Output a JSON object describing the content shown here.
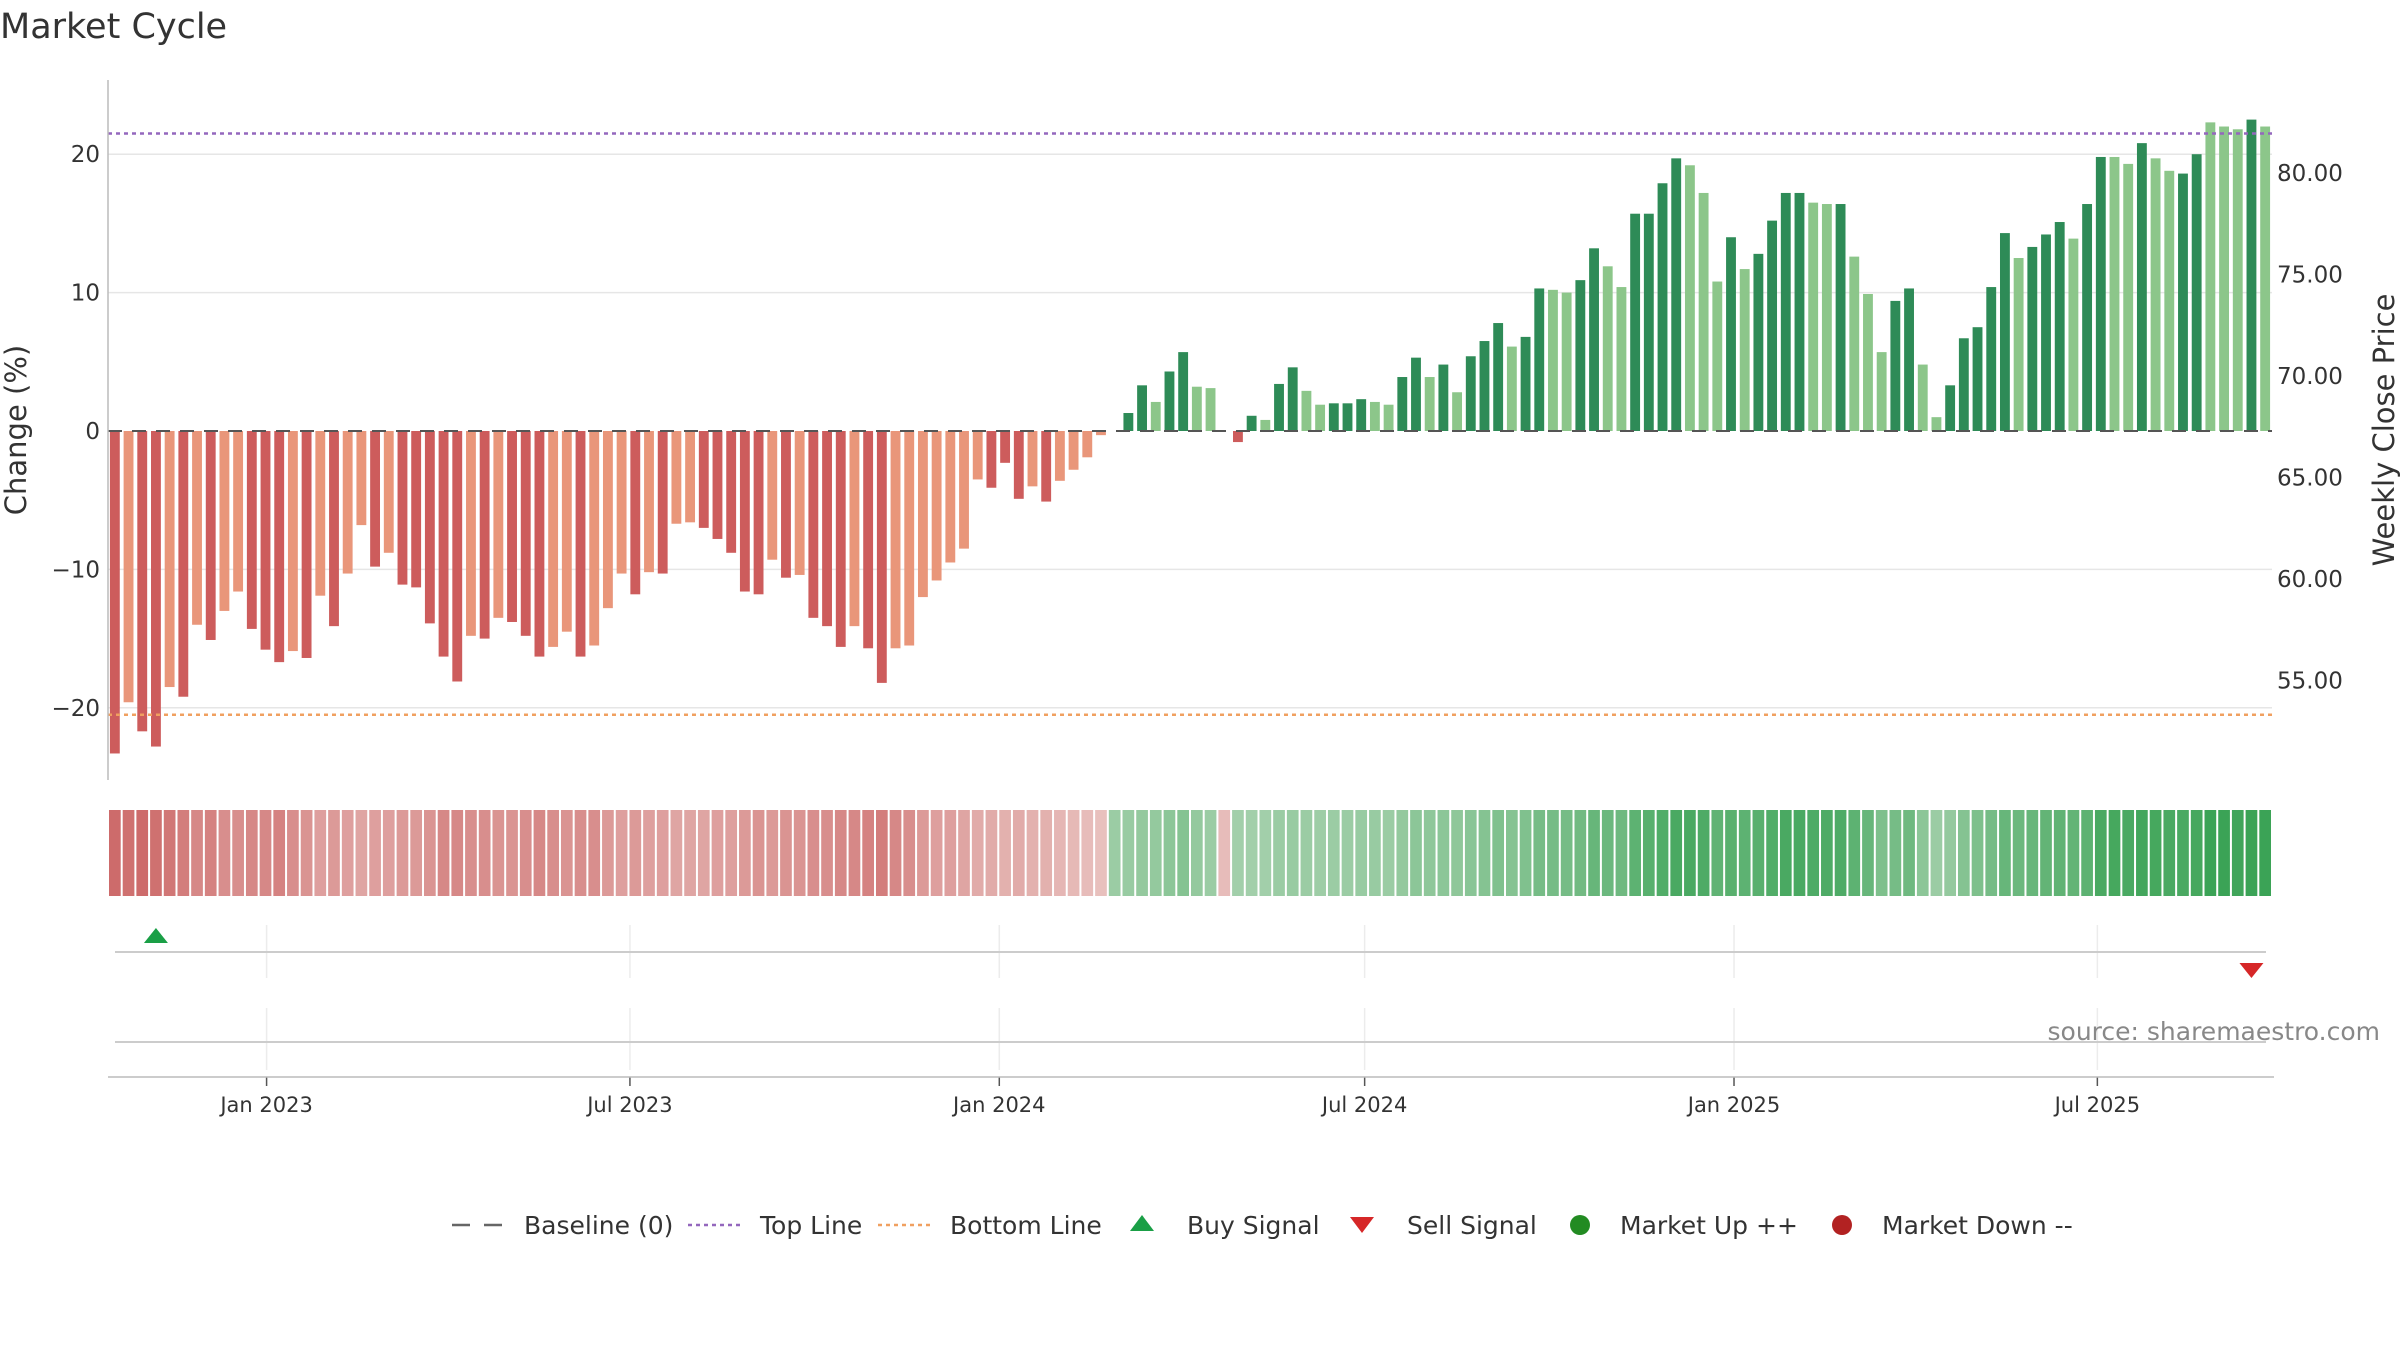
{
  "title": "Market Cycle",
  "source": "source: sharemaestro.com",
  "colors": {
    "up_strong": "#2e8b57",
    "up_light": "#8cc68a",
    "down_strong": "#cd5c5c",
    "down_light": "#e9967a",
    "top_line": "#9467bd",
    "bottom_line": "#f0a060",
    "baseline": "#555555",
    "buy": "#1a9f46",
    "sell": "#d62728",
    "market_up": "#228b22",
    "market_down": "#b22222"
  },
  "legend": [
    {
      "key": "baseline",
      "label": "Baseline (0)",
      "icon": "dash-line-icon"
    },
    {
      "key": "top",
      "label": "Top Line",
      "icon": "dotted-line-icon"
    },
    {
      "key": "bottom",
      "label": "Bottom Line",
      "icon": "dotted-line-icon"
    },
    {
      "key": "buy",
      "label": "Buy Signal",
      "icon": "triangle-up-icon"
    },
    {
      "key": "sell",
      "label": "Sell Signal",
      "icon": "triangle-down-icon"
    },
    {
      "key": "up",
      "label": "Market Up ++",
      "icon": "circle-icon"
    },
    {
      "key": "down",
      "label": "Market Down --",
      "icon": "circle-icon"
    }
  ],
  "chart_data": {
    "type": "bar",
    "title": "Market Cycle",
    "ylabel": "Change (%)",
    "y2label": "Weekly Close Price",
    "ylim": [
      -25,
      25
    ],
    "y2lim": [
      51.5,
      84.5
    ],
    "yticks": [
      {
        "v": 20,
        "label": "20"
      },
      {
        "v": 10,
        "label": "10"
      },
      {
        "v": 0,
        "label": "0"
      },
      {
        "v": -10,
        "label": "−10"
      },
      {
        "v": -20,
        "label": "−20"
      }
    ],
    "y2ticks": [
      {
        "v": 80,
        "label": "80.00"
      },
      {
        "v": 75,
        "label": "75.00"
      },
      {
        "v": 70,
        "label": "70.00"
      },
      {
        "v": 65,
        "label": "65.00"
      },
      {
        "v": 60,
        "label": "60.00"
      },
      {
        "v": 55,
        "label": "55.00"
      }
    ],
    "xlim": [
      "2022-10-14",
      "2025-09-26"
    ],
    "xticks": [
      {
        "date": "2023-01-01",
        "label": "Jan 2023"
      },
      {
        "date": "2023-07-01",
        "label": "Jul 2023"
      },
      {
        "date": "2024-01-01",
        "label": "Jan 2024"
      },
      {
        "date": "2024-07-01",
        "label": "Jul 2024"
      },
      {
        "date": "2025-01-01",
        "label": "Jan 2025"
      },
      {
        "date": "2025-07-01",
        "label": "Jul 2025"
      }
    ],
    "top_line": 21.5,
    "bottom_line": -20.5,
    "baseline": 0,
    "first_week": "2022-10-14",
    "bar_week_spacing_days": 7,
    "values": [
      -23.3,
      -19.6,
      -21.7,
      -22.8,
      -18.5,
      -19.2,
      -14.0,
      -15.1,
      -13.0,
      -11.6,
      -14.3,
      -15.8,
      -16.7,
      -15.9,
      -16.4,
      -11.9,
      -14.1,
      -10.3,
      -6.8,
      -9.8,
      -8.8,
      -11.1,
      -11.3,
      -13.9,
      -16.3,
      -18.1,
      -14.8,
      -15.0,
      -13.5,
      -13.8,
      -14.8,
      -16.3,
      -15.6,
      -14.5,
      -16.3,
      -15.5,
      -12.8,
      -10.3,
      -11.8,
      -10.2,
      -10.3,
      -6.7,
      -6.6,
      -7.0,
      -7.8,
      -8.8,
      -11.6,
      -11.8,
      -9.3,
      -10.6,
      -10.4,
      -13.5,
      -14.1,
      -15.6,
      -14.1,
      -15.7,
      -18.2,
      -15.7,
      -15.5,
      -12.0,
      -10.8,
      -9.5,
      -8.5,
      -3.5,
      -4.1,
      -2.3,
      -4.9,
      -4.0,
      -5.1,
      -3.6,
      -2.8,
      -1.9,
      -0.3,
      0.0,
      1.3,
      3.3,
      2.1,
      4.3,
      5.7,
      3.2,
      3.1,
      0.0,
      -0.8,
      1.1,
      0.8,
      3.4,
      4.6,
      2.9,
      1.9,
      2.0,
      2.0,
      2.3,
      2.1,
      1.9,
      3.9,
      5.3,
      3.9,
      4.8,
      2.8,
      5.4,
      6.5,
      7.8,
      6.1,
      6.8,
      10.3,
      10.2,
      10.0,
      10.9,
      13.2,
      11.9,
      10.4,
      15.7,
      15.7,
      17.9,
      19.7,
      19.2,
      17.2,
      10.8,
      14.0,
      11.7,
      12.8,
      15.2,
      17.2,
      17.2,
      16.5,
      16.4,
      16.4,
      12.6,
      9.9,
      5.7,
      9.4,
      10.3,
      4.8,
      1.0,
      3.3,
      6.7,
      7.5,
      10.4,
      14.3,
      12.5,
      13.3,
      14.2,
      15.1,
      13.9,
      16.4,
      19.8,
      19.8,
      19.3,
      20.8,
      19.7,
      18.8,
      18.6,
      20.0,
      22.3,
      22.0,
      21.8,
      22.5,
      22.0
    ],
    "strong_flags": [
      1,
      0,
      1,
      1,
      0,
      1,
      0,
      1,
      0,
      0,
      1,
      1,
      1,
      0,
      1,
      0,
      1,
      0,
      0,
      1,
      0,
      1,
      1,
      1,
      1,
      1,
      0,
      1,
      0,
      1,
      1,
      1,
      0,
      0,
      1,
      0,
      0,
      0,
      1,
      0,
      1,
      0,
      0,
      1,
      1,
      1,
      1,
      1,
      0,
      1,
      0,
      1,
      1,
      1,
      0,
      1,
      1,
      0,
      0,
      0,
      0,
      0,
      0,
      0,
      1,
      1,
      1,
      0,
      1,
      0,
      0,
      0,
      0,
      0,
      1,
      1,
      0,
      1,
      1,
      0,
      0,
      0,
      1,
      1,
      0,
      1,
      1,
      0,
      0,
      1,
      1,
      1,
      0,
      0,
      1,
      1,
      0,
      1,
      0,
      1,
      1,
      1,
      0,
      1,
      1,
      0,
      0,
      1,
      1,
      0,
      0,
      1,
      1,
      1,
      1,
      0,
      0,
      0,
      1,
      0,
      1,
      1,
      1,
      1,
      0,
      0,
      1,
      0,
      0,
      0,
      1,
      1,
      0,
      0,
      1,
      1,
      1,
      1,
      1,
      0,
      1,
      1,
      1,
      0,
      1,
      1,
      0,
      0,
      1,
      0,
      0,
      1,
      1,
      0,
      0,
      0,
      1,
      0
    ],
    "heat_strip": [
      -0.85,
      -0.8,
      -0.85,
      -0.8,
      -0.75,
      -0.7,
      -0.6,
      -0.65,
      -0.55,
      -0.55,
      -0.6,
      -0.6,
      -0.65,
      -0.55,
      -0.5,
      -0.4,
      -0.45,
      -0.4,
      -0.35,
      -0.4,
      -0.4,
      -0.45,
      -0.45,
      -0.5,
      -0.6,
      -0.6,
      -0.55,
      -0.55,
      -0.5,
      -0.5,
      -0.55,
      -0.6,
      -0.55,
      -0.5,
      -0.55,
      -0.55,
      -0.45,
      -0.4,
      -0.45,
      -0.4,
      -0.4,
      -0.35,
      -0.35,
      -0.35,
      -0.4,
      -0.4,
      -0.45,
      -0.5,
      -0.45,
      -0.5,
      -0.5,
      -0.55,
      -0.55,
      -0.6,
      -0.6,
      -0.65,
      -0.7,
      -0.6,
      -0.55,
      -0.45,
      -0.4,
      -0.4,
      -0.35,
      -0.3,
      -0.3,
      -0.25,
      -0.3,
      -0.25,
      -0.25,
      -0.2,
      -0.18,
      -0.15,
      -0.12,
      0.3,
      0.32,
      0.35,
      0.35,
      0.4,
      0.45,
      0.35,
      0.3,
      -0.15,
      0.25,
      0.25,
      0.25,
      0.3,
      0.32,
      0.3,
      0.28,
      0.3,
      0.3,
      0.32,
      0.32,
      0.3,
      0.35,
      0.4,
      0.38,
      0.4,
      0.38,
      0.42,
      0.45,
      0.48,
      0.45,
      0.48,
      0.55,
      0.55,
      0.55,
      0.58,
      0.65,
      0.62,
      0.6,
      0.72,
      0.75,
      0.8,
      0.85,
      0.85,
      0.82,
      0.7,
      0.75,
      0.72,
      0.75,
      0.8,
      0.85,
      0.85,
      0.82,
      0.82,
      0.82,
      0.72,
      0.65,
      0.5,
      0.55,
      0.6,
      0.4,
      0.3,
      0.35,
      0.45,
      0.5,
      0.55,
      0.65,
      0.62,
      0.65,
      0.68,
      0.7,
      0.68,
      0.72,
      0.85,
      0.88,
      0.85,
      0.9,
      0.88,
      0.85,
      0.85,
      0.88,
      0.95,
      0.95,
      0.92,
      0.95,
      0.95
    ],
    "signals": [
      {
        "type": "buy",
        "bar_index": 3
      },
      {
        "type": "sell",
        "bar_index": 156
      }
    ]
  }
}
